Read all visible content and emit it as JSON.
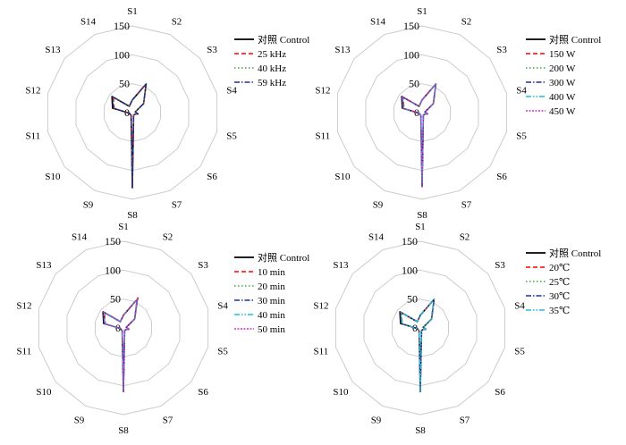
{
  "chart_data": [
    {
      "type": "radar",
      "categories": [
        "S1",
        "S2",
        "S3",
        "S4",
        "S5",
        "S6",
        "S7",
        "S8",
        "S9",
        "S10",
        "S11",
        "S12",
        "S13",
        "S14"
      ],
      "rticks": [
        "0",
        "50",
        "100",
        "150"
      ],
      "rlim": [
        0,
        150
      ],
      "legend_position": "top-right",
      "series": [
        {
          "name": "对照 Control",
          "color": "#000000",
          "dash": "solid",
          "values": [
            22,
            55,
            25,
            5,
            10,
            5,
            5,
            130,
            5,
            5,
            5,
            35,
            45,
            12
          ]
        },
        {
          "name": "25 kHz",
          "color": "#ff0000",
          "dash": "dash",
          "values": [
            22,
            55,
            25,
            5,
            10,
            5,
            5,
            128,
            5,
            5,
            5,
            32,
            42,
            12
          ]
        },
        {
          "name": "40 kHz",
          "color": "#33aa33",
          "dash": "dot",
          "values": [
            22,
            55,
            25,
            5,
            10,
            5,
            5,
            128,
            5,
            5,
            5,
            32,
            42,
            12
          ]
        },
        {
          "name": "59 kHz",
          "color": "#1f2f9f",
          "dash": "dashdot",
          "values": [
            22,
            55,
            25,
            5,
            10,
            5,
            5,
            130,
            5,
            5,
            5,
            34,
            44,
            12
          ]
        }
      ]
    },
    {
      "type": "radar",
      "categories": [
        "S1",
        "S2",
        "S3",
        "S4",
        "S5",
        "S6",
        "S7",
        "S8",
        "S9",
        "S10",
        "S11",
        "S12",
        "S13",
        "S14"
      ],
      "rticks": [
        "0",
        "50",
        "100",
        "150"
      ],
      "rlim": [
        0,
        150
      ],
      "legend_position": "top-right",
      "series": [
        {
          "name": "对照 Control",
          "color": "#000000",
          "dash": "solid",
          "values": [
            22,
            55,
            25,
            5,
            10,
            5,
            5,
            128,
            5,
            5,
            5,
            35,
            45,
            12
          ]
        },
        {
          "name": "150 W",
          "color": "#ff0000",
          "dash": "dash",
          "values": [
            22,
            55,
            25,
            5,
            10,
            5,
            5,
            126,
            5,
            5,
            5,
            32,
            42,
            12
          ]
        },
        {
          "name": "200 W",
          "color": "#33aa33",
          "dash": "dot",
          "values": [
            22,
            55,
            25,
            5,
            10,
            5,
            5,
            126,
            5,
            5,
            5,
            32,
            42,
            12
          ]
        },
        {
          "name": "300 W",
          "color": "#1f2f9f",
          "dash": "dashdot",
          "values": [
            22,
            55,
            25,
            5,
            10,
            5,
            5,
            128,
            5,
            5,
            5,
            34,
            44,
            12
          ]
        },
        {
          "name": "400 W",
          "color": "#22bbdd",
          "dash": "dashdotdot",
          "values": [
            22,
            55,
            25,
            5,
            10,
            5,
            5,
            127,
            5,
            5,
            5,
            33,
            43,
            12
          ]
        },
        {
          "name": "450 W",
          "color": "#cc33cc",
          "dash": "fine",
          "values": [
            22,
            55,
            25,
            5,
            10,
            5,
            5,
            128,
            5,
            5,
            5,
            34,
            44,
            12
          ]
        }
      ]
    },
    {
      "type": "radar",
      "categories": [
        "S1",
        "S2",
        "S3",
        "S4",
        "S5",
        "S6",
        "S7",
        "S8",
        "S9",
        "S10",
        "S11",
        "S12",
        "S13",
        "S14"
      ],
      "rticks": [
        "0",
        "50",
        "100",
        "150"
      ],
      "rlim": [
        0,
        150
      ],
      "legend_position": "top-right",
      "series": [
        {
          "name": "对照 Control",
          "color": "#000000",
          "dash": "solid",
          "values": [
            22,
            55,
            25,
            5,
            10,
            5,
            5,
            110,
            5,
            5,
            5,
            35,
            45,
            12
          ]
        },
        {
          "name": "10 min",
          "color": "#ff0000",
          "dash": "dash",
          "values": [
            22,
            58,
            25,
            5,
            10,
            5,
            5,
            108,
            5,
            5,
            5,
            32,
            42,
            12
          ]
        },
        {
          "name": "20 min",
          "color": "#33aa33",
          "dash": "dot",
          "values": [
            22,
            55,
            25,
            5,
            10,
            5,
            5,
            108,
            5,
            5,
            5,
            32,
            42,
            12
          ]
        },
        {
          "name": "30 min",
          "color": "#1f2f9f",
          "dash": "dashdot",
          "values": [
            22,
            55,
            25,
            5,
            10,
            5,
            5,
            110,
            5,
            5,
            5,
            34,
            44,
            12
          ]
        },
        {
          "name": "40 min",
          "color": "#22bbdd",
          "dash": "dashdotdot",
          "values": [
            22,
            55,
            25,
            5,
            10,
            5,
            5,
            109,
            5,
            5,
            5,
            33,
            43,
            12
          ]
        },
        {
          "name": "50 min",
          "color": "#cc33cc",
          "dash": "fine",
          "values": [
            22,
            55,
            25,
            5,
            10,
            5,
            5,
            110,
            5,
            5,
            5,
            34,
            44,
            12
          ]
        }
      ]
    },
    {
      "type": "radar",
      "categories": [
        "S1",
        "S2",
        "S3",
        "S4",
        "S5",
        "S6",
        "S7",
        "S8",
        "S9",
        "S10",
        "S11",
        "S12",
        "S13",
        "S14"
      ],
      "rticks": [
        "0",
        "50",
        "100",
        "150"
      ],
      "rlim": [
        0,
        150
      ],
      "legend_position": "top-right",
      "series": [
        {
          "name": "对照 Control",
          "color": "#000000",
          "dash": "solid",
          "values": [
            22,
            55,
            25,
            5,
            10,
            5,
            5,
            110,
            5,
            5,
            5,
            35,
            45,
            12
          ]
        },
        {
          "name": "20℃",
          "color": "#ff0000",
          "dash": "dash",
          "values": [
            22,
            55,
            25,
            5,
            10,
            5,
            5,
            108,
            5,
            5,
            5,
            32,
            42,
            12
          ]
        },
        {
          "name": "25℃",
          "color": "#33aa33",
          "dash": "dot",
          "values": [
            22,
            55,
            25,
            5,
            10,
            5,
            5,
            108,
            5,
            5,
            5,
            32,
            42,
            12
          ]
        },
        {
          "name": "30℃",
          "color": "#1f2f9f",
          "dash": "dashdot",
          "values": [
            22,
            55,
            25,
            5,
            10,
            5,
            5,
            110,
            5,
            5,
            5,
            34,
            44,
            12
          ]
        },
        {
          "name": "35℃",
          "color": "#22bbdd",
          "dash": "dashdotdot",
          "values": [
            22,
            55,
            25,
            5,
            10,
            5,
            5,
            109,
            5,
            5,
            5,
            33,
            43,
            12
          ]
        }
      ]
    }
  ]
}
